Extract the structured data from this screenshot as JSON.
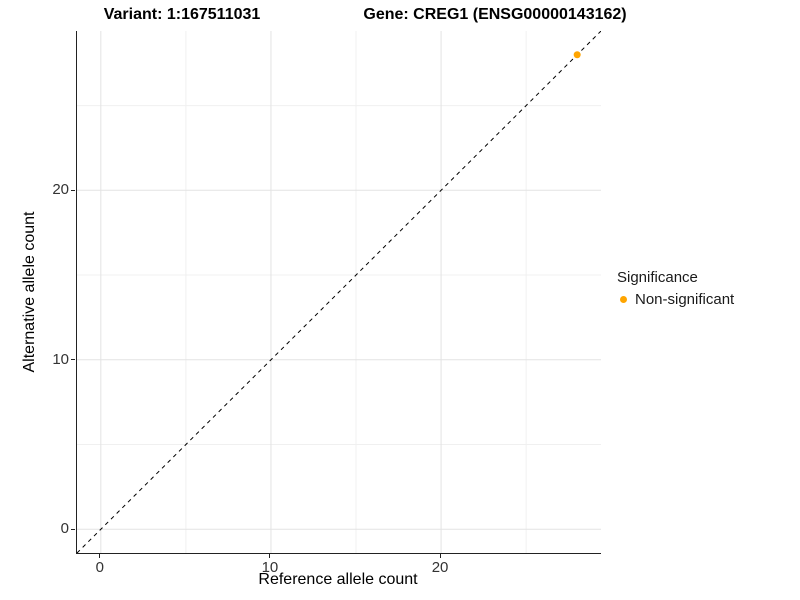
{
  "chart_data": {
    "type": "scatter",
    "title_variant": "Variant: 1:167511031",
    "title_gene": "Gene: CREG1 (ENSG00000143162)",
    "xlabel": "Reference allele count",
    "ylabel": "Alternative allele count",
    "xlim": [
      -1.4,
      29.4
    ],
    "ylim": [
      -1.4,
      29.4
    ],
    "x_major_ticks": [
      0,
      10,
      20
    ],
    "y_major_ticks": [
      0,
      10,
      20
    ],
    "x_minor_gridlines": [
      5,
      15,
      25
    ],
    "y_minor_gridlines": [
      5,
      15,
      25
    ],
    "grid": "major+minor",
    "identity_line": {
      "style": "dashed",
      "color": "#000000",
      "from": -1.4,
      "to": 29.4
    },
    "series": [
      {
        "name": "Non-significant",
        "color": "#FFA500",
        "points": [
          [
            28,
            28
          ]
        ]
      }
    ],
    "legend": {
      "title": "Significance",
      "position": "right",
      "items": [
        {
          "label": "Non-significant",
          "color": "#FFA500",
          "marker": "circle"
        }
      ]
    },
    "colors": {
      "grid_major": "#e3e3e3",
      "grid_minor": "#f0f0f0",
      "axis_line": "#222222",
      "point": "#FFA500"
    }
  }
}
